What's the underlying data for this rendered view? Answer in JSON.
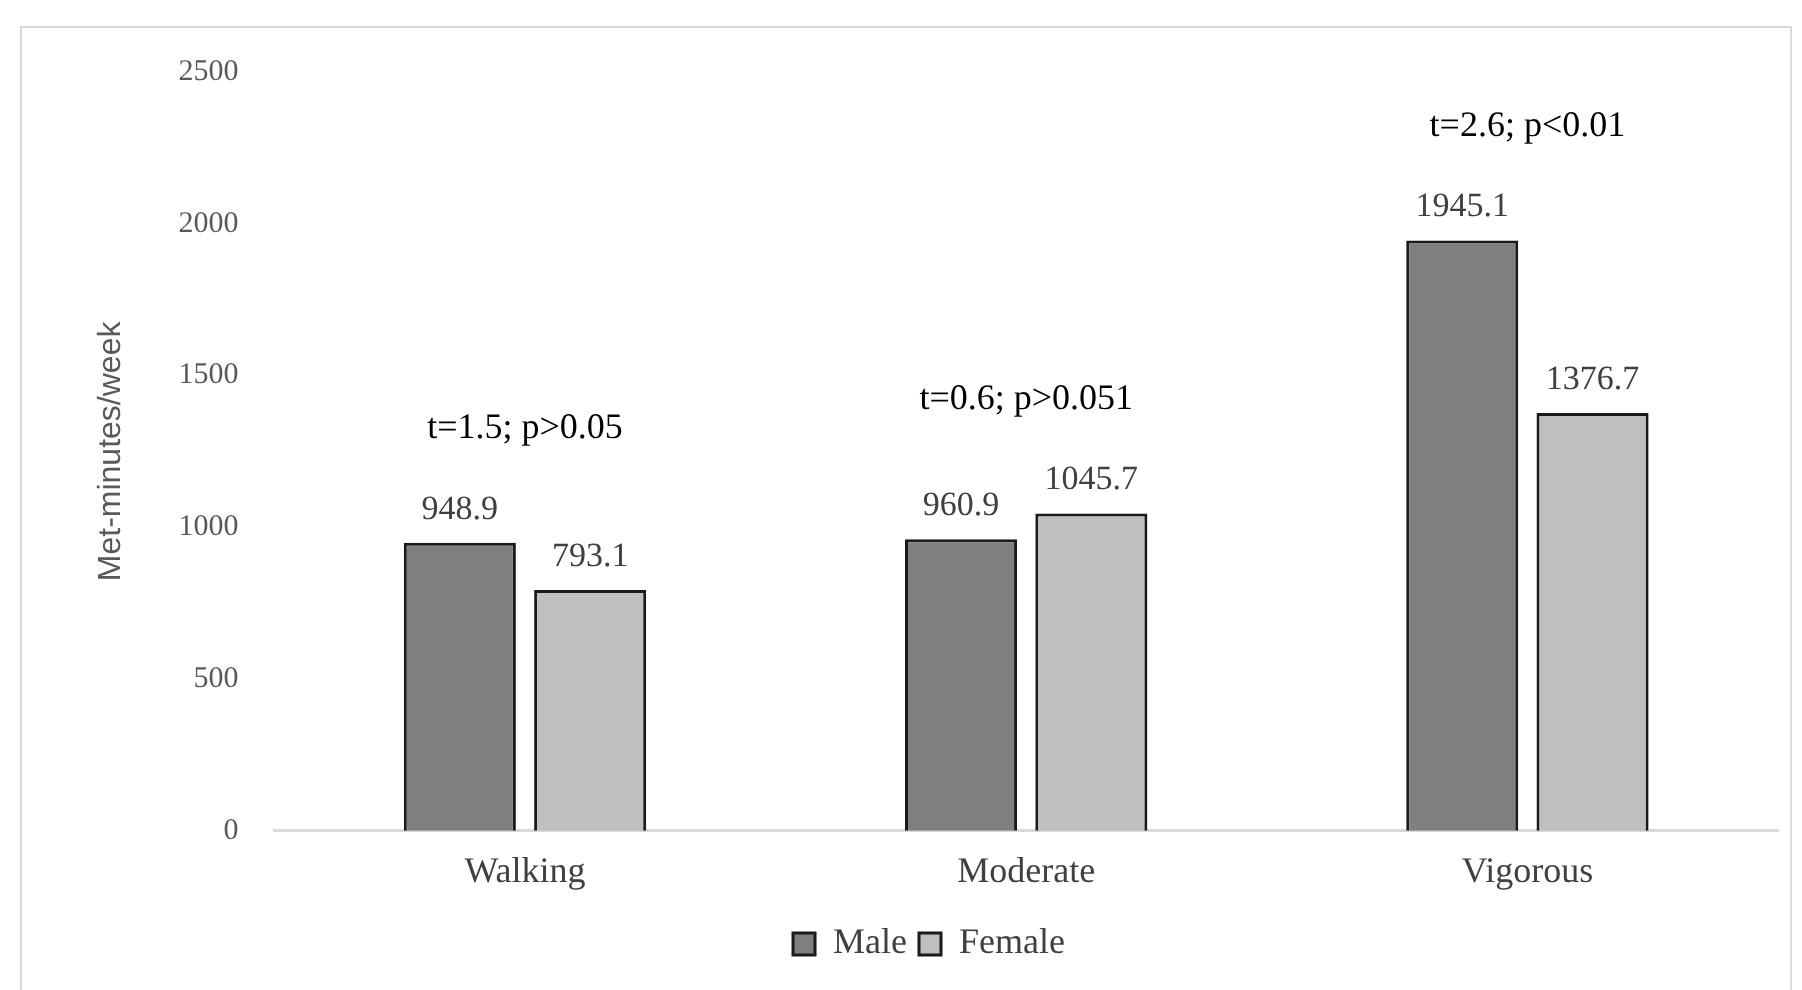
{
  "chart_data": {
    "type": "bar",
    "ylabel": "Met-minutes/week",
    "categories": [
      "Walking",
      "Moderate",
      "Vigorous"
    ],
    "series": [
      {
        "name": "Male",
        "color": "#7f7f7f",
        "values": [
          948.9,
          960.9,
          1945.1
        ]
      },
      {
        "name": "Female",
        "color": "#bfbfbf",
        "values": [
          793.1,
          1045.7,
          1376.7
        ]
      }
    ],
    "ylim": [
      0,
      2500
    ],
    "yticks": [
      0,
      500,
      1000,
      1500,
      2000,
      2500
    ],
    "grid": false,
    "legend": "bottom",
    "data_labels": true,
    "annotations": [
      "t=1.5; p>0.05",
      "t=0.6; p>0.051",
      "t=2.6; p<0.01"
    ]
  }
}
